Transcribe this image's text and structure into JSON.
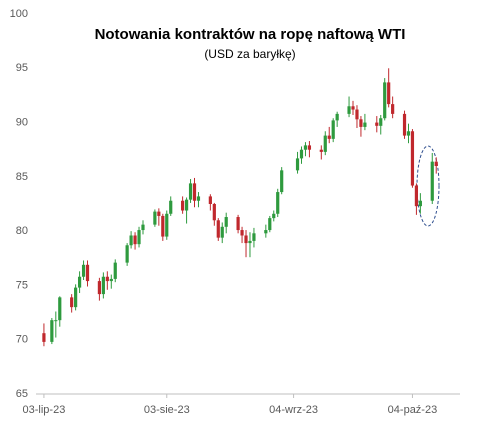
{
  "chart_data": {
    "type": "candlestick",
    "title": "Notowania  kontraktów  na ropę naftową WTI",
    "subtitle": "(USD za baryłkę)",
    "x": [
      "2023-07-03",
      "2023-07-05",
      "2023-07-06",
      "2023-07-07",
      "2023-07-10",
      "2023-07-11",
      "2023-07-12",
      "2023-07-13",
      "2023-07-14",
      "2023-07-17",
      "2023-07-18",
      "2023-07-19",
      "2023-07-20",
      "2023-07-21",
      "2023-07-24",
      "2023-07-25",
      "2023-07-26",
      "2023-07-27",
      "2023-07-28",
      "2023-07-31",
      "2023-08-01",
      "2023-08-02",
      "2023-08-03",
      "2023-08-04",
      "2023-08-07",
      "2023-08-08",
      "2023-08-09",
      "2023-08-10",
      "2023-08-11",
      "2023-08-14",
      "2023-08-15",
      "2023-08-16",
      "2023-08-17",
      "2023-08-18",
      "2023-08-21",
      "2023-08-22",
      "2023-08-23",
      "2023-08-24",
      "2023-08-25",
      "2023-08-28",
      "2023-08-29",
      "2023-08-30",
      "2023-08-31",
      "2023-09-01",
      "2023-09-05",
      "2023-09-06",
      "2023-09-07",
      "2023-09-08",
      "2023-09-11",
      "2023-09-12",
      "2023-09-13",
      "2023-09-14",
      "2023-09-15",
      "2023-09-18",
      "2023-09-19",
      "2023-09-20",
      "2023-09-21",
      "2023-09-22",
      "2023-09-25",
      "2023-09-26",
      "2023-09-27",
      "2023-09-28",
      "2023-09-29",
      "2023-10-02",
      "2023-10-03",
      "2023-10-04",
      "2023-10-05",
      "2023-10-06",
      "2023-10-09",
      "2023-10-10"
    ],
    "open": [
      70.6,
      69.8,
      71.8,
      71.8,
      73.9,
      73.0,
      74.8,
      75.8,
      76.9,
      75.4,
      74.2,
      75.8,
      75.4,
      75.6,
      77.1,
      78.7,
      79.6,
      78.8,
      80.1,
      80.6,
      81.8,
      81.4,
      79.5,
      81.6,
      82.8,
      81.9,
      82.9,
      84.4,
      82.8,
      83.2,
      82.5,
      81.0,
      79.4,
      80.4,
      81.3,
      80.1,
      79.6,
      78.9,
      79.1,
      79.8,
      80.1,
      81.2,
      81.6,
      83.6,
      85.6,
      86.7,
      87.5,
      87.9,
      87.5,
      87.3,
      88.8,
      88.5,
      90.2,
      90.8,
      91.5,
      91.2,
      90.3,
      89.6,
      90.0,
      89.7,
      90.4,
      93.7,
      91.7,
      90.8,
      88.8,
      89.2,
      84.2,
      82.3,
      82.8,
      86.4
    ],
    "high": [
      71.5,
      72.0,
      72.6,
      74.0,
      74.2,
      75.1,
      76.3,
      77.3,
      77.3,
      75.7,
      76.2,
      76.3,
      76.0,
      77.4,
      78.9,
      80.0,
      79.9,
      80.4,
      81.0,
      82.0,
      82.1,
      81.6,
      81.9,
      83.2,
      83.2,
      83.1,
      84.8,
      84.9,
      83.6,
      83.4,
      82.6,
      81.2,
      80.8,
      81.7,
      81.5,
      80.4,
      80.1,
      79.9,
      80.3,
      80.6,
      81.4,
      81.9,
      83.9,
      85.9,
      87.3,
      87.8,
      88.2,
      88.3,
      87.9,
      89.2,
      89.6,
      90.4,
      91.0,
      92.4,
      92.0,
      91.6,
      90.6,
      90.8,
      90.6,
      90.7,
      94.1,
      95.0,
      92.4,
      91.1,
      89.9,
      89.4,
      84.4,
      83.5,
      87.2,
      86.8
    ],
    "low": [
      69.4,
      69.6,
      70.2,
      71.2,
      72.5,
      72.7,
      74.3,
      75.5,
      74.9,
      73.6,
      73.8,
      74.6,
      74.7,
      75.3,
      76.8,
      78.4,
      78.3,
      78.5,
      79.7,
      80.4,
      80.5,
      79.1,
      79.2,
      81.4,
      81.6,
      80.7,
      82.6,
      82.2,
      82.2,
      81.9,
      80.5,
      79.1,
      78.9,
      79.8,
      79.8,
      78.9,
      77.6,
      77.6,
      78.5,
      79.4,
      79.9,
      80.9,
      81.3,
      83.4,
      85.3,
      86.2,
      86.9,
      86.8,
      86.6,
      87.0,
      88.1,
      88.2,
      89.6,
      90.5,
      90.7,
      89.5,
      88.7,
      89.3,
      89.1,
      88.9,
      90.2,
      91.4,
      90.4,
      88.5,
      88.1,
      84.0,
      81.5,
      81.6,
      82.5,
      85.3
    ],
    "close": [
      69.8,
      71.8,
      71.8,
      73.9,
      73.0,
      74.8,
      75.8,
      76.9,
      75.4,
      74.2,
      75.8,
      75.4,
      75.6,
      77.1,
      78.7,
      79.6,
      78.8,
      80.1,
      80.6,
      81.8,
      81.4,
      79.5,
      81.6,
      82.8,
      81.9,
      82.9,
      84.4,
      82.8,
      83.2,
      82.5,
      81.0,
      79.4,
      80.4,
      81.3,
      80.1,
      79.6,
      78.9,
      79.1,
      79.8,
      80.1,
      81.2,
      81.6,
      83.6,
      85.6,
      86.7,
      87.5,
      87.9,
      87.5,
      87.3,
      88.8,
      88.5,
      90.2,
      90.8,
      91.5,
      91.2,
      90.3,
      89.6,
      90.0,
      89.7,
      90.4,
      93.7,
      91.7,
      90.8,
      88.8,
      89.2,
      84.2,
      82.3,
      82.8,
      86.4,
      86.0
    ],
    "up_color": "#2e9a3e",
    "down_color": "#c0282d",
    "xlim": [
      "2023-07-01",
      "2023-10-16"
    ],
    "xticks": [
      {
        "value": "2023-07-03",
        "label": "03-lip-23"
      },
      {
        "value": "2023-08-03",
        "label": "03-sie-23"
      },
      {
        "value": "2023-09-04",
        "label": "04-wrz-23"
      },
      {
        "value": "2023-10-04",
        "label": "04-paź-23"
      }
    ],
    "ylim": [
      65,
      100
    ],
    "yticks": [
      65,
      70,
      75,
      80,
      85,
      90,
      95,
      100
    ],
    "grid": false
  }
}
